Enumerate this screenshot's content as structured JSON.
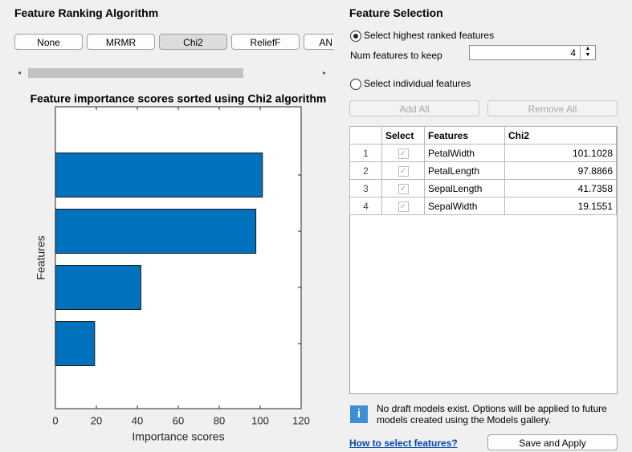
{
  "left_panel": {
    "title": "Feature Ranking Algorithm",
    "buttons": [
      "None",
      "MRMR",
      "Chi2",
      "ReliefF",
      "AN"
    ]
  },
  "chart_data": {
    "type": "barh",
    "title": "Feature importance scores sorted using Chi2 algorithm",
    "xlabel": "Importance scores",
    "ylabel": "Features",
    "categories": [
      null,
      null,
      null,
      null
    ],
    "values": [
      101.1028,
      97.8866,
      41.7358,
      19.1551
    ],
    "color": "#0072bd",
    "xlim": [
      0,
      120
    ],
    "xticks": [
      0,
      20,
      40,
      60,
      80,
      100,
      120
    ]
  },
  "right_panel": {
    "title": "Feature Selection",
    "radio_ranked": "Select highest ranked features",
    "num_label": "Num features to keep",
    "num_features": 4,
    "radio_individual": "Select individual features",
    "add_all": "Add All",
    "remove_all": "Remove All",
    "table": {
      "columns": [
        "Select",
        "Features",
        "Chi2"
      ],
      "rows": [
        [
          1,
          "PetalWidth",
          101.1028
        ],
        [
          2,
          "PetalLength",
          97.8866
        ],
        [
          3,
          "SepalLength",
          41.7358
        ],
        [
          4,
          "SepalWidth",
          19.1551
        ]
      ]
    },
    "info": "No draft models exist. Options will be applied to future models created using the Models gallery.",
    "help_link": "How to select features?",
    "save": "Save and Apply"
  }
}
